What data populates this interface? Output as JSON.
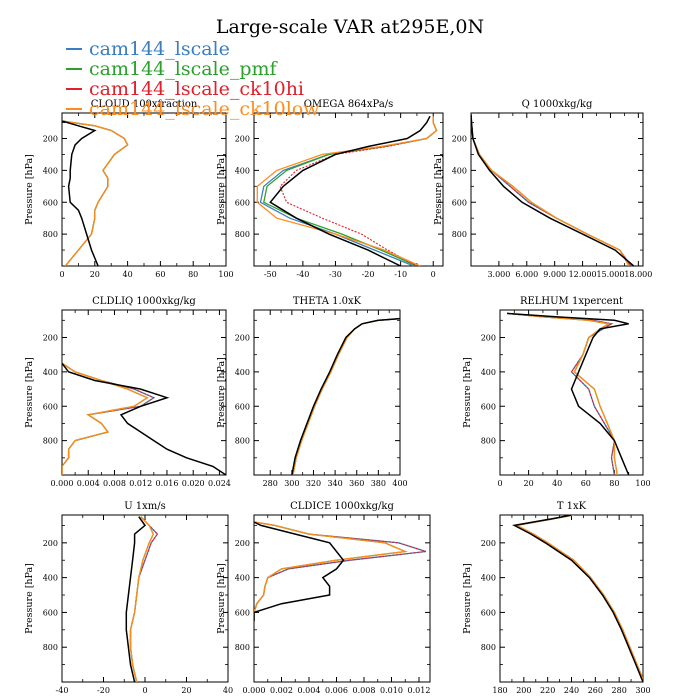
{
  "figure": {
    "title": "Large-scale VAR at295E,0N",
    "legend": [
      {
        "label": "cam144_lscale",
        "color": "#3a7ebf"
      },
      {
        "label": "cam144_lscale_pmf",
        "color": "#2ca02c"
      },
      {
        "label": "cam144_lscale_ck10hi",
        "color": "#e0202a"
      },
      {
        "label": "cam144_lscale_ck10low",
        "color": "#ff8c1a"
      }
    ],
    "control_color": "#000000"
  },
  "chart_data": [
    {
      "type": "line",
      "title": "CLOUD 100xfraction",
      "ylabel": "Pressure [hPa]",
      "xlim": [
        0,
        100
      ],
      "ylim": [
        40,
        1000
      ],
      "y_inverted": true,
      "xticks": [
        0,
        20,
        40,
        60,
        80,
        100
      ],
      "xtick_labels": [
        "0",
        "20",
        "40",
        "60",
        "80",
        "100"
      ],
      "yticks": [
        200,
        400,
        600,
        800
      ],
      "ytick_labels": [
        "200",
        "400",
        "600",
        "800"
      ],
      "y": [
        90,
        120,
        150,
        200,
        240,
        300,
        400,
        450,
        500,
        600,
        650,
        700,
        800,
        900,
        1000
      ],
      "control": [
        0,
        10,
        20,
        12,
        8,
        6,
        5,
        5,
        4,
        5,
        10,
        12,
        15,
        18,
        22
      ],
      "series": [
        [
          0,
          20,
          30,
          38,
          40,
          32,
          25,
          28,
          28,
          22,
          20,
          20,
          18,
          10,
          2
        ]
      ]
    },
    {
      "type": "line",
      "title": "OMEGA 864xPa/s",
      "ylabel": "Pressure [hPa]",
      "xlim": [
        -55,
        3
      ],
      "ylim": [
        40,
        1000
      ],
      "y_inverted": true,
      "xticks": [
        -50,
        -40,
        -30,
        -20,
        -10,
        0
      ],
      "xtick_labels": [
        "-50",
        "-40",
        "-30",
        "-20",
        "-10",
        "0"
      ],
      "yticks": [
        200,
        400,
        600,
        800
      ],
      "ytick_labels": [
        "200",
        "400",
        "600",
        "800"
      ],
      "y": [
        60,
        100,
        150,
        200,
        250,
        300,
        400,
        500,
        600,
        700,
        800,
        900,
        1000
      ],
      "control": [
        -1,
        -2,
        -4,
        -8,
        -20,
        -30,
        -40,
        -46,
        -50,
        -42,
        -32,
        -20,
        -10
      ],
      "series": [
        [
          0,
          0,
          1,
          -2,
          -15,
          -32,
          -46,
          -52,
          -53,
          -44,
          -30,
          -18,
          -6
        ],
        [
          0,
          0,
          1,
          -2,
          -15,
          -32,
          -45,
          -51,
          -52,
          -42,
          -28,
          -16,
          -5
        ],
        [
          0,
          0,
          1,
          -2,
          -14,
          -30,
          -42,
          -47,
          -45,
          -34,
          -22,
          -14,
          -5
        ],
        [
          0,
          0,
          1,
          -2,
          -16,
          -34,
          -48,
          -54,
          -54,
          -48,
          -30,
          -15,
          -4
        ]
      ]
    },
    {
      "type": "line",
      "title": "Q 1000xkg/kg",
      "ylabel": "Pressure [hPa]",
      "xlim": [
        0,
        18.5
      ],
      "ylim": [
        40,
        1000
      ],
      "y_inverted": true,
      "xticks": [
        3,
        6,
        9,
        12,
        15,
        18
      ],
      "xtick_labels": [
        "3.000",
        "6.000",
        "9.000",
        "12.000",
        "15.000",
        "18.000"
      ],
      "yticks": [
        200,
        400,
        600,
        800
      ],
      "ytick_labels": [
        "200",
        "400",
        "600",
        "800"
      ],
      "y": [
        50,
        100,
        200,
        300,
        400,
        500,
        600,
        700,
        800,
        900,
        1000
      ],
      "control": [
        0.01,
        0.05,
        0.2,
        0.8,
        2,
        3.5,
        5.5,
        8.5,
        12,
        15.5,
        17.5
      ],
      "series": [
        [
          0.01,
          0.05,
          0.2,
          0.9,
          2.2,
          4.2,
          6.2,
          9.2,
          12.5,
          16,
          17.2
        ],
        [
          0.01,
          0.05,
          0.2,
          0.9,
          2.2,
          4.5,
          6.5,
          9.2,
          12.5,
          16,
          17.0
        ]
      ]
    },
    {
      "type": "line",
      "title": "CLDLIQ 1000xkg/kg",
      "ylabel": "Pressure [hPa]",
      "xlim": [
        0,
        0.025
      ],
      "ylim": [
        40,
        1000
      ],
      "y_inverted": true,
      "xticks": [
        0,
        0.004,
        0.008,
        0.012,
        0.016,
        0.02,
        0.024
      ],
      "xtick_labels": [
        "0.000",
        "0.004",
        "0.008",
        "0.012",
        "0.016",
        "0.020",
        "0.024"
      ],
      "yticks": [
        200,
        400,
        600,
        800
      ],
      "ytick_labels": [
        "200",
        "400",
        "600",
        "800"
      ],
      "y": [
        350,
        400,
        450,
        500,
        550,
        600,
        650,
        700,
        750,
        800,
        850,
        900,
        950,
        1000
      ],
      "control": [
        0,
        0.001,
        0.005,
        0.012,
        0.016,
        0.012,
        0.009,
        0.01,
        0.012,
        0.014,
        0.016,
        0.019,
        0.023,
        0.025
      ],
      "series": [
        [
          0,
          0.002,
          0.006,
          0.011,
          0.014,
          0.012,
          0.004,
          0.006,
          0.007,
          0.002,
          0.001,
          0.001,
          0,
          0
        ],
        [
          0,
          0.002,
          0.006,
          0.01,
          0.013,
          0.011,
          0.004,
          0.006,
          0.007,
          0.002,
          0.001,
          0.001,
          0,
          0
        ]
      ]
    },
    {
      "type": "line",
      "title": "THETA 1.0xK",
      "ylabel": "Pressure [hPa]",
      "xlim": [
        265,
        400
      ],
      "ylim": [
        40,
        1000
      ],
      "y_inverted": true,
      "xticks": [
        280,
        300,
        320,
        340,
        360,
        380,
        400
      ],
      "xtick_labels": [
        "280",
        "300",
        "320",
        "340",
        "360",
        "380",
        "400"
      ],
      "yticks": [
        200,
        400,
        600,
        800
      ],
      "ytick_labels": [
        "200",
        "400",
        "600",
        "800"
      ],
      "y": [
        90,
        100,
        120,
        150,
        200,
        300,
        400,
        500,
        600,
        700,
        800,
        900,
        1000
      ],
      "control": [
        400,
        380,
        365,
        358,
        350,
        342,
        335,
        327,
        320,
        314,
        308,
        303,
        300
      ],
      "series": [
        [
          400,
          380,
          365,
          358,
          351,
          343,
          336,
          328,
          321,
          315,
          309,
          304,
          301
        ]
      ]
    },
    {
      "type": "line",
      "title": "RELHUM 1xpercent",
      "ylabel": "Pressure [hPa]",
      "xlim": [
        0,
        100
      ],
      "ylim": [
        40,
        1000
      ],
      "y_inverted": true,
      "xticks": [
        0,
        20,
        40,
        60,
        80,
        100
      ],
      "xtick_labels": [
        "0",
        "20",
        "40",
        "60",
        "80",
        "100"
      ],
      "yticks": [
        200,
        400,
        600,
        800
      ],
      "ytick_labels": [
        "200",
        "400",
        "600",
        "800"
      ],
      "y": [
        60,
        80,
        100,
        120,
        150,
        200,
        300,
        400,
        500,
        600,
        700,
        800,
        900,
        1000
      ],
      "control": [
        5,
        40,
        80,
        90,
        70,
        65,
        60,
        55,
        50,
        55,
        70,
        80,
        85,
        90
      ],
      "series": [
        [
          5,
          30,
          65,
          78,
          72,
          62,
          58,
          50,
          62,
          66,
          73,
          80,
          78,
          80
        ],
        [
          5,
          30,
          62,
          76,
          70,
          62,
          58,
          52,
          66,
          70,
          75,
          80,
          80,
          82
        ]
      ]
    },
    {
      "type": "line",
      "title": "U 1xm/s",
      "ylabel": "Pressure [hPa]",
      "xlim": [
        -40,
        40
      ],
      "ylim": [
        40,
        1000
      ],
      "y_inverted": true,
      "xticks": [
        -40,
        -20,
        0,
        20,
        40
      ],
      "xtick_labels": [
        "-40",
        "-20",
        "0",
        "20",
        "40"
      ],
      "yticks": [
        200,
        400,
        600,
        800
      ],
      "ytick_labels": [
        "200",
        "400",
        "600",
        "800"
      ],
      "y": [
        50,
        100,
        150,
        200,
        300,
        400,
        500,
        600,
        700,
        800,
        900,
        1000
      ],
      "control": [
        -3,
        0,
        -5,
        -5,
        -6,
        -7,
        -8,
        -9,
        -9,
        -8,
        -7,
        -5
      ],
      "series": [
        [
          -2,
          2,
          6,
          3,
          0,
          -3,
          -4,
          -5,
          -7,
          -7,
          -6,
          -4
        ],
        [
          -2,
          2,
          4,
          2,
          -1,
          -3,
          -4,
          -5,
          -7,
          -7,
          -6,
          -4
        ]
      ]
    },
    {
      "type": "line",
      "title": "CLDICE 1000xkg/kg",
      "ylabel": "Pressure [hPa]",
      "xlim": [
        0,
        0.0128
      ],
      "ylim": [
        40,
        1000
      ],
      "y_inverted": true,
      "xticks": [
        0,
        0.002,
        0.004,
        0.006,
        0.008,
        0.01,
        0.012
      ],
      "xtick_labels": [
        "0.000",
        "0.002",
        "0.004",
        "0.006",
        "0.008",
        "0.010",
        "0.012"
      ],
      "yticks": [
        200,
        400,
        600,
        800
      ],
      "ytick_labels": [
        "200",
        "400",
        "600",
        "800"
      ],
      "y": [
        80,
        100,
        150,
        200,
        250,
        300,
        350,
        400,
        450,
        500,
        550,
        600,
        650
      ],
      "control": [
        0,
        0.0005,
        0.003,
        0.0055,
        0.006,
        0.0065,
        0.006,
        0.005,
        0.0055,
        0.0055,
        0.002,
        0,
        0
      ],
      "series": [
        [
          0,
          0.0015,
          0.004,
          0.0105,
          0.0125,
          0.007,
          0.0025,
          0.001,
          0.0008,
          0.0007,
          0.0002,
          0,
          0
        ],
        [
          0,
          0.0015,
          0.004,
          0.0095,
          0.011,
          0.006,
          0.002,
          0.001,
          0.0008,
          0.0007,
          0.0002,
          0,
          0
        ]
      ]
    },
    {
      "type": "line",
      "title": "T 1xK",
      "ylabel": "Pressure [hPa]",
      "xlim": [
        180,
        300
      ],
      "ylim": [
        40,
        1000
      ],
      "y_inverted": true,
      "xticks": [
        180,
        200,
        220,
        240,
        260,
        280,
        300
      ],
      "xtick_labels": [
        "180",
        "200",
        "220",
        "240",
        "260",
        "280",
        "300"
      ],
      "yticks": [
        200,
        400,
        600,
        800
      ],
      "ytick_labels": [
        "200",
        "400",
        "600",
        "800"
      ],
      "y": [
        40,
        60,
        80,
        100,
        150,
        200,
        300,
        400,
        500,
        600,
        700,
        800,
        900,
        1000
      ],
      "control": [
        240,
        225,
        208,
        192,
        206,
        218,
        240,
        255,
        266,
        275,
        282,
        288,
        294,
        300
      ],
      "series": [
        [
          242,
          226,
          210,
          194,
          208,
          220,
          242,
          256,
          267,
          276,
          283,
          289,
          295,
          301
        ]
      ]
    }
  ]
}
